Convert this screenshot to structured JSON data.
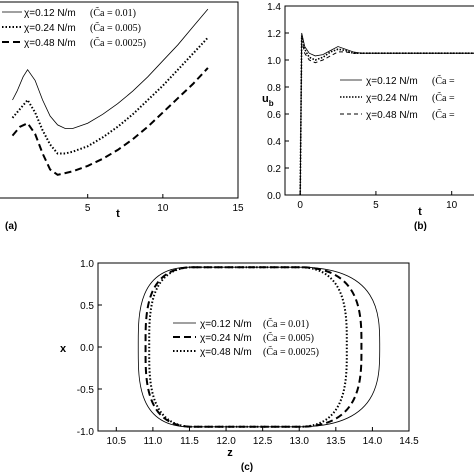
{
  "chart_data": [
    {
      "type": "line",
      "panel_label": "(a)",
      "xlabel": "t",
      "ylabel": "",
      "xlim": [
        -1.5,
        15
      ],
      "x_ticks": [
        "5",
        "10",
        "15"
      ],
      "series": [
        {
          "name": "χ=0.12 N/m",
          "ca": "(C̃a = 0.01)",
          "style": "solid",
          "x": [
            0,
            0.3,
            0.7,
            1.0,
            1.5,
            2.0,
            2.5,
            3.0,
            3.5,
            4.0,
            5.0,
            6.0,
            7.0,
            8.0,
            9.0,
            10.0,
            11.0,
            12.0,
            13.0
          ],
          "y": [
            0.55,
            0.6,
            0.68,
            0.72,
            0.66,
            0.55,
            0.46,
            0.41,
            0.39,
            0.39,
            0.42,
            0.47,
            0.53,
            0.6,
            0.68,
            0.77,
            0.86,
            0.96,
            1.06
          ]
        },
        {
          "name": "χ=0.24 N/m",
          "ca": "(C̃a = 0.005)",
          "style": "dotted",
          "x": [
            0,
            0.5,
            1.0,
            1.5,
            2.0,
            2.5,
            3.0,
            3.5,
            4.0,
            5.0,
            6.0,
            7.0,
            8.0,
            9.0,
            10.0,
            11.0,
            12.0,
            13.0
          ],
          "y": [
            0.45,
            0.5,
            0.55,
            0.48,
            0.38,
            0.3,
            0.25,
            0.25,
            0.26,
            0.29,
            0.34,
            0.4,
            0.47,
            0.55,
            0.63,
            0.72,
            0.81,
            0.9
          ]
        },
        {
          "name": "χ=0.48 N/m",
          "ca": "(C̃a = 0.0025)",
          "style": "dashed",
          "x": [
            0,
            0.5,
            1.0,
            1.5,
            2.0,
            2.5,
            3.0,
            3.5,
            4.0,
            5.0,
            6.0,
            7.0,
            8.0,
            9.0,
            10.0,
            11.0,
            12.0,
            13.0
          ],
          "y": [
            0.35,
            0.4,
            0.42,
            0.36,
            0.25,
            0.16,
            0.13,
            0.14,
            0.15,
            0.18,
            0.22,
            0.27,
            0.33,
            0.4,
            0.48,
            0.56,
            0.64,
            0.73
          ]
        }
      ]
    },
    {
      "type": "line",
      "panel_label": "(b)",
      "xlabel": "t",
      "ylabel": "u_b",
      "xlim": [
        -1,
        12
      ],
      "ylim": [
        0,
        1.4
      ],
      "x_ticks": [
        "0",
        "5",
        "10"
      ],
      "y_ticks": [
        "0.0",
        "0.2",
        "0.4",
        "0.6",
        "0.8",
        "1.0",
        "1.2",
        "1.4"
      ],
      "series": [
        {
          "name": "χ=0.12 N/m",
          "ca": "(C̃a =",
          "style": "solid",
          "x": [
            0,
            0.1,
            0.3,
            0.6,
            1.0,
            1.5,
            2.0,
            2.5,
            3.0,
            3.5,
            4.0,
            5.0,
            6.0,
            8.0,
            10.0,
            12.0
          ],
          "y": [
            0.0,
            1.2,
            1.1,
            1.05,
            1.03,
            1.04,
            1.07,
            1.1,
            1.08,
            1.06,
            1.05,
            1.05,
            1.05,
            1.05,
            1.05,
            1.05
          ]
        },
        {
          "name": "χ=0.24 N/m",
          "ca": "(C̃a =",
          "style": "dotted",
          "x": [
            0,
            0.1,
            0.3,
            0.6,
            1.0,
            1.5,
            2.0,
            2.5,
            3.0,
            3.5,
            4.0,
            5.0,
            6.0,
            8.0,
            10.0,
            12.0
          ],
          "y": [
            0.0,
            1.18,
            1.08,
            1.02,
            1.0,
            1.02,
            1.06,
            1.08,
            1.07,
            1.05,
            1.05,
            1.05,
            1.05,
            1.05,
            1.05,
            1.05
          ]
        },
        {
          "name": "χ=0.48 N/m",
          "ca": "(C̃a =",
          "style": "dashed",
          "x": [
            0,
            0.1,
            0.3,
            0.6,
            1.0,
            1.5,
            2.0,
            2.5,
            3.0,
            3.5,
            4.0,
            5.0,
            6.0,
            8.0,
            10.0,
            12.0
          ],
          "y": [
            0.0,
            1.15,
            1.05,
            1.0,
            0.98,
            1.0,
            1.03,
            1.06,
            1.06,
            1.05,
            1.05,
            1.05,
            1.05,
            1.05,
            1.05,
            1.05
          ]
        }
      ]
    },
    {
      "type": "line",
      "panel_label": "(c)",
      "xlabel": "z",
      "ylabel": "x",
      "xlim": [
        10.25,
        14.5
      ],
      "ylim": [
        -1.0,
        1.0
      ],
      "x_ticks": [
        "10.5",
        "11.0",
        "11.5",
        "12.0",
        "12.5",
        "13.0",
        "13.5",
        "14.0",
        "14.5"
      ],
      "y_ticks": [
        "-1.0",
        "-0.5",
        "0.0",
        "0.5",
        "1.0"
      ],
      "series": [
        {
          "name": "χ=0.12 N/m",
          "ca": "(C̃a = 0.01)",
          "style": "solid",
          "z_left": 10.8,
          "z_right": 14.1,
          "z_top_left": 11.5,
          "z_top_right": 13.0
        },
        {
          "name": "χ=0.24 N/m",
          "ca": "(C̃a = 0.005)",
          "style": "dashed",
          "z_left": 10.9,
          "z_right": 13.85,
          "z_top_left": 11.55,
          "z_top_right": 13.0
        },
        {
          "name": "χ=0.48 N/m",
          "ca": "(C̃a = 0.0025)",
          "style": "dotted",
          "z_left": 10.95,
          "z_right": 13.65,
          "z_top_left": 11.55,
          "z_top_right": 13.0
        }
      ]
    }
  ]
}
